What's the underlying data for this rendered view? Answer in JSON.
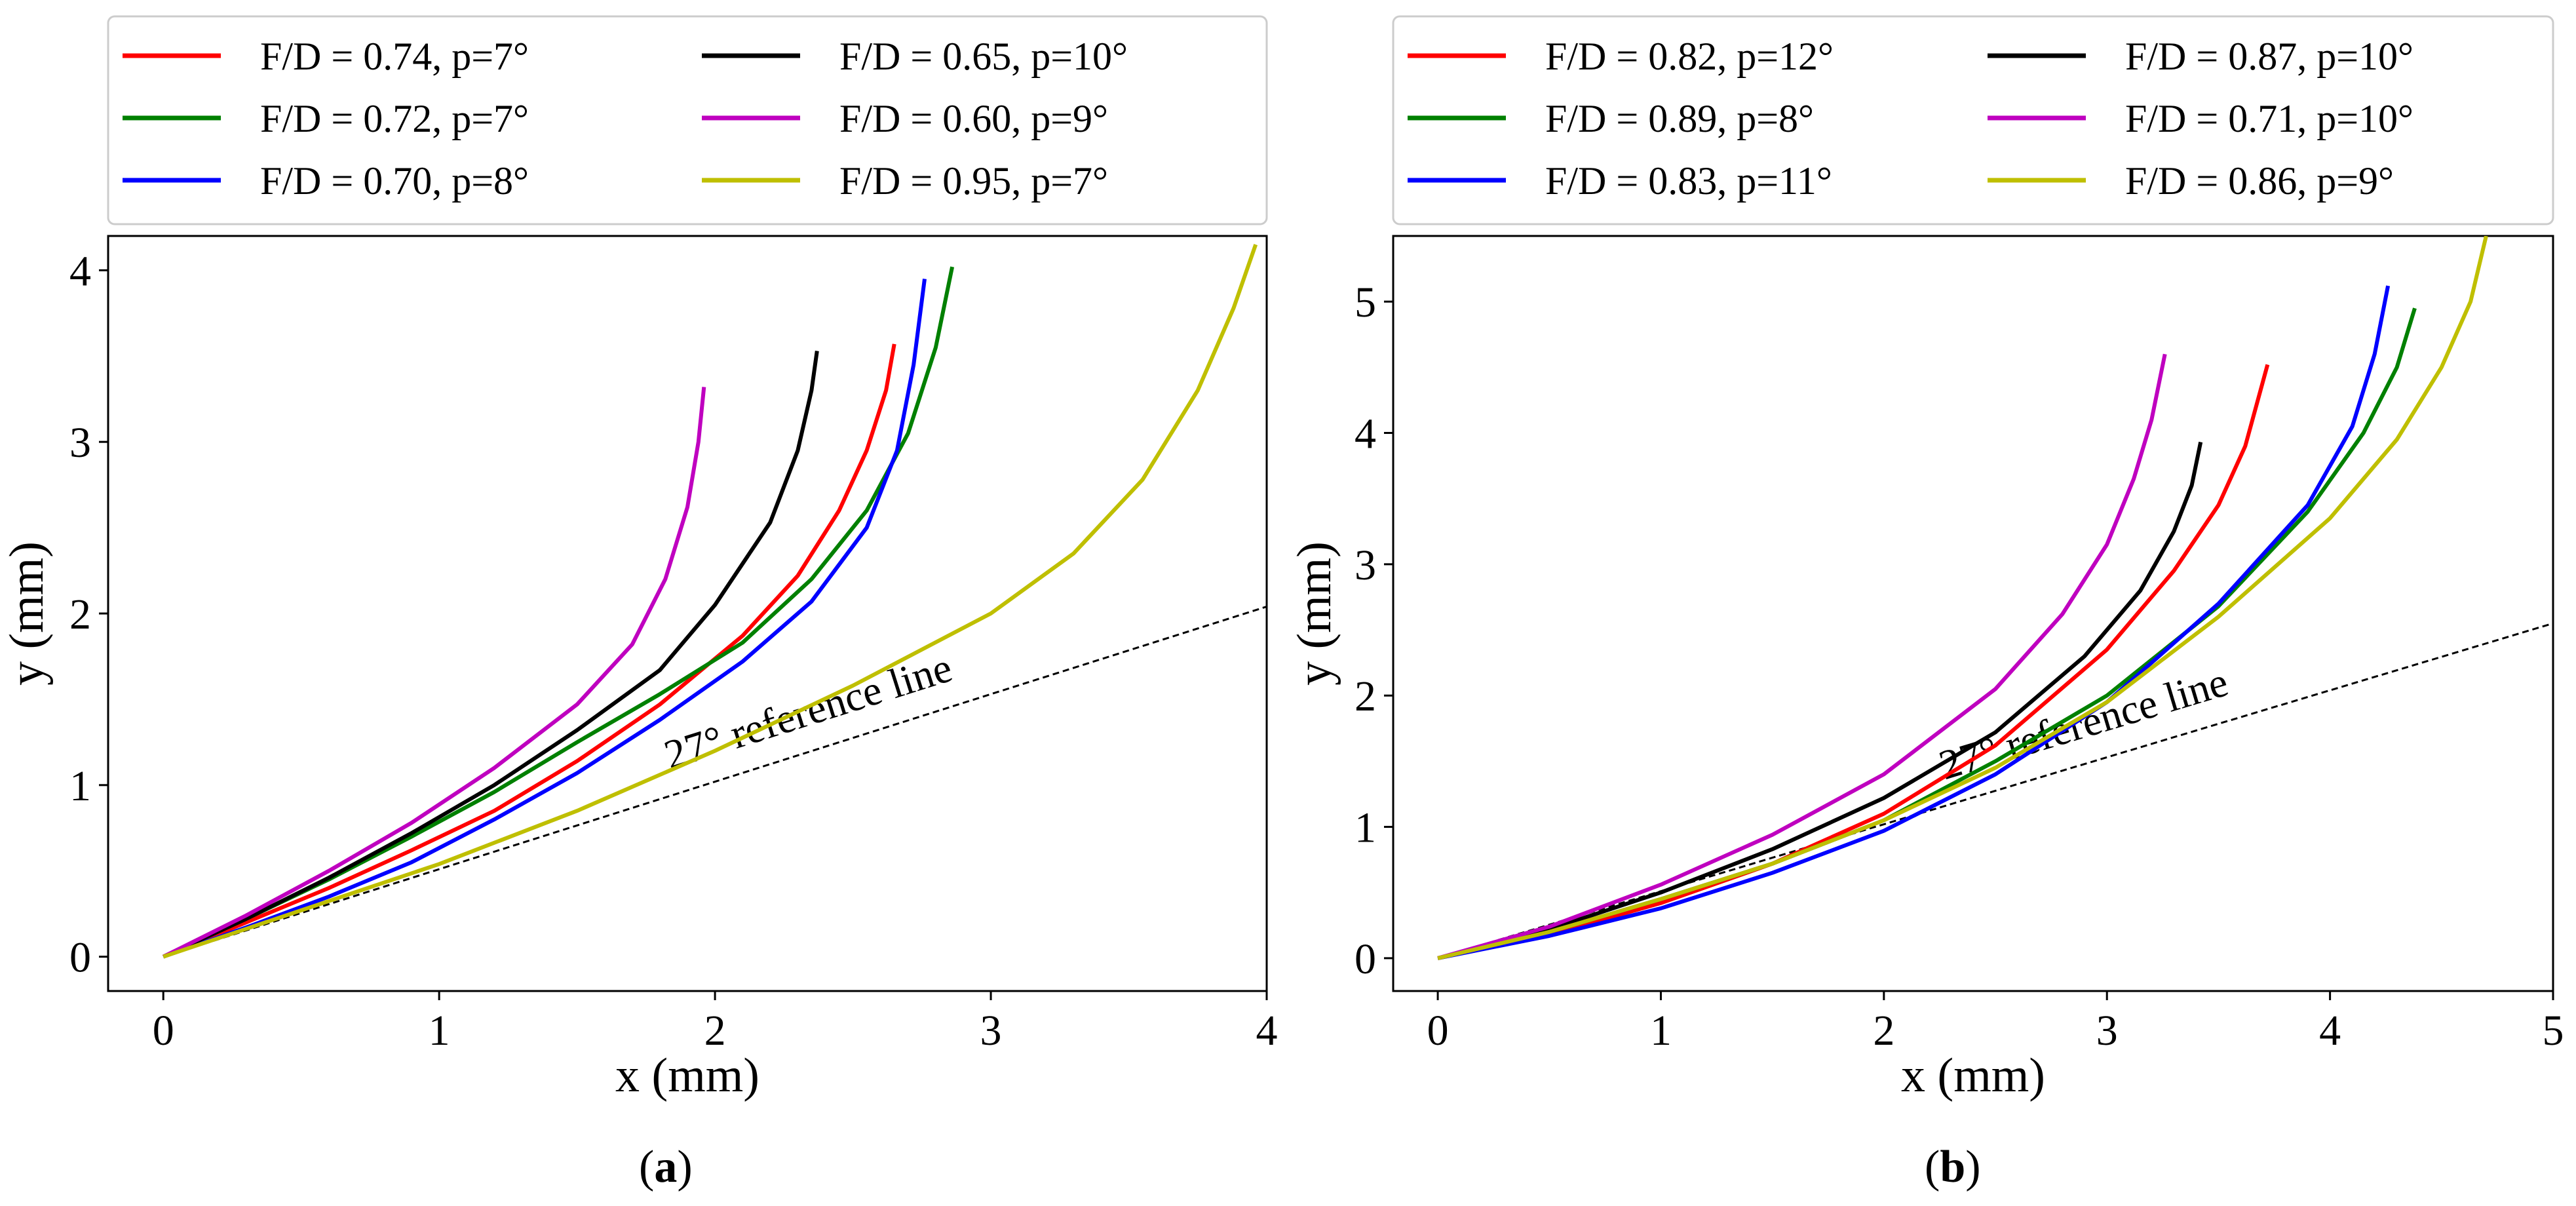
{
  "chart_data": [
    {
      "type": "line",
      "panel_label": "a",
      "caption": "(a)",
      "xlabel": "x (mm)",
      "ylabel": "y (mm)",
      "xlim": [
        -0.2,
        4.0
      ],
      "ylim": [
        -0.2,
        4.2
      ],
      "xticks": [
        0,
        1,
        2,
        3,
        4
      ],
      "yticks": [
        0,
        1,
        2,
        3,
        4
      ],
      "grid": false,
      "legend_position": "top",
      "reference_line": {
        "label": "27° reference line",
        "angle_deg": 27,
        "x": [
          0,
          4.0
        ],
        "y": [
          0,
          2.04
        ],
        "style": "dashed",
        "color": "#000000"
      },
      "series": [
        {
          "name": "F/D = 0.74, p=7°",
          "color": "#ff0000",
          "x": [
            0,
            0.3,
            0.6,
            0.9,
            1.2,
            1.5,
            1.8,
            2.1,
            2.3,
            2.45,
            2.55,
            2.62,
            2.65
          ],
          "y": [
            0,
            0.2,
            0.4,
            0.62,
            0.85,
            1.14,
            1.47,
            1.87,
            2.22,
            2.6,
            2.95,
            3.3,
            3.57
          ]
        },
        {
          "name": "F/D = 0.72, p=7°",
          "color": "#008000",
          "x": [
            0,
            0.3,
            0.6,
            0.9,
            1.2,
            1.5,
            1.8,
            2.1,
            2.35,
            2.55,
            2.7,
            2.8,
            2.86
          ],
          "y": [
            0,
            0.22,
            0.45,
            0.7,
            0.96,
            1.25,
            1.53,
            1.83,
            2.2,
            2.6,
            3.05,
            3.55,
            4.02
          ]
        },
        {
          "name": "F/D = 0.70, p=8°",
          "color": "#0000ff",
          "x": [
            0,
            0.3,
            0.6,
            0.9,
            1.2,
            1.5,
            1.8,
            2.1,
            2.35,
            2.55,
            2.66,
            2.72,
            2.76
          ],
          "y": [
            0,
            0.17,
            0.35,
            0.55,
            0.8,
            1.07,
            1.38,
            1.72,
            2.07,
            2.5,
            2.95,
            3.45,
            3.95
          ]
        },
        {
          "name": "F/D = 0.65, p=10°",
          "color": "#000000",
          "x": [
            0,
            0.3,
            0.6,
            0.9,
            1.2,
            1.5,
            1.8,
            2.0,
            2.2,
            2.3,
            2.35,
            2.37
          ],
          "y": [
            0,
            0.22,
            0.46,
            0.72,
            1.0,
            1.32,
            1.67,
            2.05,
            2.53,
            2.95,
            3.3,
            3.53
          ]
        },
        {
          "name": "F/D = 0.60, p=9°",
          "color": "#bf00bf",
          "x": [
            0,
            0.3,
            0.6,
            0.9,
            1.2,
            1.5,
            1.7,
            1.82,
            1.9,
            1.94,
            1.96
          ],
          "y": [
            0,
            0.24,
            0.5,
            0.78,
            1.1,
            1.47,
            1.82,
            2.2,
            2.62,
            3.0,
            3.32
          ]
        },
        {
          "name": "F/D = 0.95, p=7°",
          "color": "#bfbf00",
          "x": [
            0,
            0.5,
            1.0,
            1.5,
            2.0,
            2.5,
            3.0,
            3.3,
            3.55,
            3.75,
            3.88,
            3.96
          ],
          "y": [
            0,
            0.27,
            0.54,
            0.85,
            1.2,
            1.58,
            2.0,
            2.35,
            2.78,
            3.3,
            3.78,
            4.15
          ]
        }
      ]
    },
    {
      "type": "line",
      "panel_label": "b",
      "caption": "(b)",
      "xlabel": "x (mm)",
      "ylabel": "y (mm)",
      "xlim": [
        -0.2,
        5.0
      ],
      "ylim": [
        -0.25,
        5.5
      ],
      "xticks": [
        0,
        1,
        2,
        3,
        4,
        5
      ],
      "yticks": [
        0,
        1,
        2,
        3,
        4,
        5
      ],
      "grid": false,
      "legend_position": "top",
      "reference_line": {
        "label": "27° reference line",
        "angle_deg": 27,
        "x": [
          0,
          5.0
        ],
        "y": [
          0,
          2.55
        ],
        "style": "dashed",
        "color": "#000000"
      },
      "series": [
        {
          "name": "F/D = 0.82, p=12°",
          "color": "#ff0000",
          "x": [
            0,
            0.5,
            1.0,
            1.5,
            2.0,
            2.5,
            3.0,
            3.3,
            3.5,
            3.62,
            3.72
          ],
          "y": [
            0,
            0.18,
            0.42,
            0.72,
            1.1,
            1.62,
            2.35,
            2.95,
            3.45,
            3.9,
            4.52
          ]
        },
        {
          "name": "F/D = 0.89, p=8°",
          "color": "#008000",
          "x": [
            0,
            0.5,
            1.0,
            1.5,
            2.0,
            2.5,
            3.0,
            3.5,
            3.9,
            4.15,
            4.3,
            4.38
          ],
          "y": [
            0,
            0.2,
            0.45,
            0.72,
            1.05,
            1.5,
            2.0,
            2.68,
            3.4,
            4.0,
            4.5,
            4.95
          ]
        },
        {
          "name": "F/D = 0.83, p=11°",
          "color": "#0000ff",
          "x": [
            0,
            0.5,
            1.0,
            1.5,
            2.0,
            2.5,
            3.0,
            3.5,
            3.9,
            4.1,
            4.2,
            4.26
          ],
          "y": [
            0,
            0.17,
            0.38,
            0.65,
            0.97,
            1.4,
            1.95,
            2.7,
            3.45,
            4.05,
            4.6,
            5.12
          ]
        },
        {
          "name": "F/D = 0.87, p=10°",
          "color": "#000000",
          "x": [
            0,
            0.5,
            1.0,
            1.5,
            2.0,
            2.5,
            2.9,
            3.15,
            3.3,
            3.38,
            3.42
          ],
          "y": [
            0,
            0.22,
            0.5,
            0.83,
            1.22,
            1.72,
            2.3,
            2.8,
            3.25,
            3.6,
            3.93
          ]
        },
        {
          "name": "F/D = 0.71, p=10°",
          "color": "#bf00bf",
          "x": [
            0,
            0.5,
            1.0,
            1.5,
            2.0,
            2.5,
            2.8,
            3.0,
            3.12,
            3.2,
            3.26
          ],
          "y": [
            0,
            0.24,
            0.56,
            0.94,
            1.4,
            2.05,
            2.62,
            3.15,
            3.65,
            4.1,
            4.6
          ]
        },
        {
          "name": "F/D = 0.86, p=9°",
          "color": "#bfbf00",
          "x": [
            0,
            0.5,
            1.0,
            1.5,
            2.0,
            2.5,
            3.0,
            3.5,
            4.0,
            4.3,
            4.5,
            4.63,
            4.7
          ],
          "y": [
            0,
            0.2,
            0.45,
            0.72,
            1.05,
            1.45,
            1.95,
            2.6,
            3.35,
            3.95,
            4.5,
            5.0,
            5.5
          ]
        }
      ]
    }
  ]
}
